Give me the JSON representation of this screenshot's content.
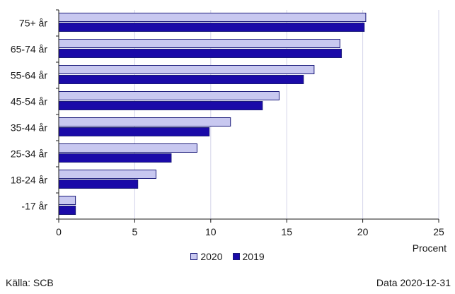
{
  "chart_data": {
    "type": "bar",
    "orientation": "horizontal",
    "categories": [
      "75+ år",
      "65-74 år",
      "55-64 år",
      "45-54 år",
      "35-44 år",
      "25-34 år",
      "18-24 år",
      "-17 år"
    ],
    "series": [
      {
        "name": "2020",
        "color": "#c8c8f0",
        "values": [
          20.2,
          18.5,
          16.8,
          14.5,
          11.3,
          9.1,
          6.4,
          1.1
        ]
      },
      {
        "name": "2019",
        "color": "#1a0aa8",
        "values": [
          20.1,
          18.6,
          16.1,
          13.4,
          9.9,
          7.4,
          5.2,
          1.1
        ]
      }
    ],
    "xlabel": "Procent",
    "xlim": [
      0,
      25
    ],
    "xticks": [
      0,
      5,
      10,
      15,
      20,
      25
    ],
    "grid": "vertical",
    "legend_position": "bottom"
  },
  "footer": {
    "source": "Källa: SCB",
    "date": "Data 2020-12-31"
  }
}
